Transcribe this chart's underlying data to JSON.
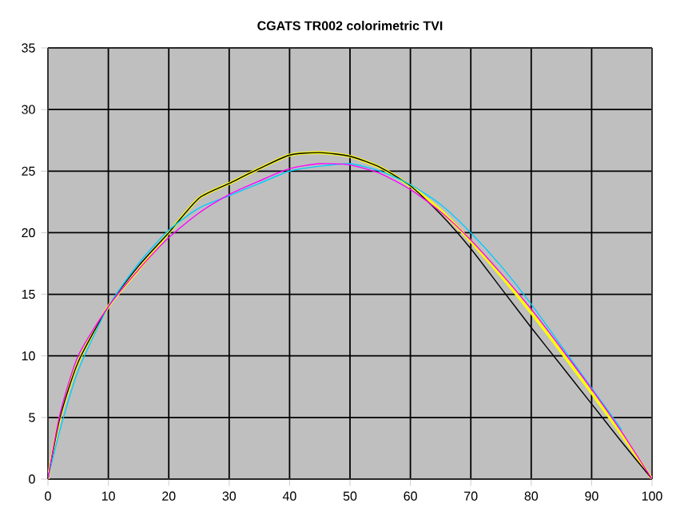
{
  "chart_data": {
    "type": "line",
    "title": "CGATS TR002 colorimetric TVI",
    "x": [
      0,
      2,
      5,
      10,
      15,
      20,
      25,
      30,
      35,
      40,
      45,
      50,
      55,
      60,
      65,
      70,
      75,
      80,
      85,
      90,
      95,
      100
    ],
    "series": [
      {
        "color": "#00ccff",
        "values": [
          0,
          4,
          8.8,
          14,
          17.5,
          20.2,
          22,
          23,
          24,
          25,
          25.4,
          25.6,
          25,
          23.9,
          22.3,
          20,
          17.3,
          14.2,
          10.8,
          7.4,
          4.0,
          null
        ]
      },
      {
        "color": "#ff00ff",
        "values": [
          0,
          5.3,
          10,
          14,
          17,
          19.6,
          21.6,
          23.1,
          24.2,
          25.2,
          25.6,
          25.5,
          24.8,
          23.5,
          21.7,
          19.4,
          16.7,
          13.8,
          10.6,
          7.3,
          3.8,
          0
        ]
      },
      {
        "color": "#ffff00",
        "values": [
          0,
          5,
          9.5,
          14,
          17,
          20,
          22.8,
          24,
          25.2,
          26.3,
          26.5,
          26.2,
          25.3,
          23.8,
          21.8,
          19.3,
          16.5,
          13.5,
          10.3,
          7,
          3.6,
          0
        ]
      },
      {
        "color": "#000000",
        "values": [
          0,
          5,
          9.5,
          14,
          17.3,
          20,
          22.8,
          24,
          25.2,
          26.3,
          26.5,
          26.2,
          25.3,
          23.8,
          21.5,
          18.7,
          15.5,
          12.3,
          9.2,
          6.1,
          3,
          0
        ]
      }
    ],
    "xlim": [
      0,
      100
    ],
    "ylim": [
      0,
      35
    ],
    "xticks": [
      0,
      10,
      20,
      30,
      40,
      50,
      60,
      70,
      80,
      90,
      100
    ],
    "yticks": [
      0,
      5,
      10,
      15,
      20,
      25,
      30,
      35
    ],
    "grid": true,
    "marker": "none",
    "line_style": "solid"
  }
}
